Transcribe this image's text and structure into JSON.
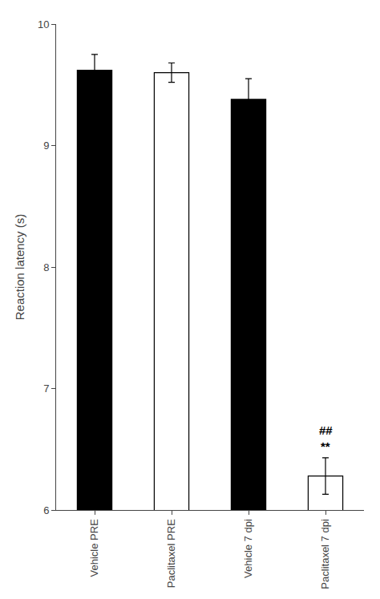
{
  "chart_data": {
    "type": "bar",
    "categories": [
      "Vehicle PRE",
      "Paclitaxel PRE",
      "Vehicle 7 dpi",
      "Paclitaxel 7 dpi"
    ],
    "values": [
      9.62,
      9.6,
      9.38,
      6.28
    ],
    "errors": [
      0.13,
      0.08,
      0.17,
      0.15
    ],
    "colors": [
      "#000000",
      "#ffffff",
      "#000000",
      "#ffffff"
    ],
    "ylabel": "Reaction latency (s)",
    "ylim": [
      6.0,
      10.0
    ],
    "yticks": [
      6,
      7,
      8,
      9,
      10
    ],
    "annotations": [
      {
        "text": "##",
        "category": "Paclitaxel 7 dpi"
      },
      {
        "text": "**",
        "category": "Paclitaxel 7 dpi"
      }
    ],
    "grid": false
  }
}
